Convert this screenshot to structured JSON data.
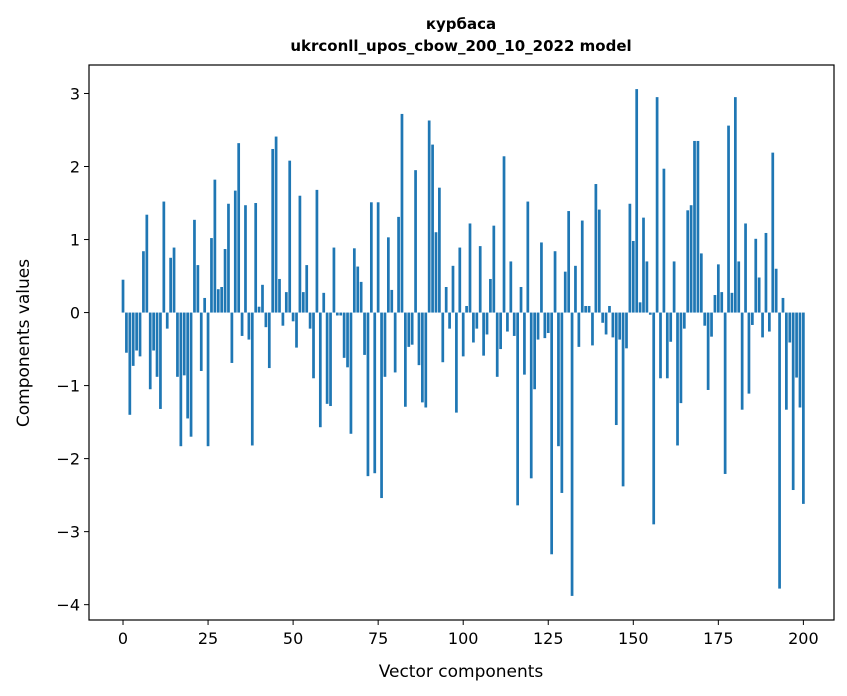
{
  "chart_data": {
    "type": "bar",
    "title_line1": "курбаса",
    "title_line2": "ukrconll_upos_cbow_200_10_2022 model",
    "xlabel": "Vector components",
    "ylabel": "Components values",
    "xlim": [
      -10,
      209
    ],
    "ylim": [
      -4.21,
      3.39
    ],
    "xticks": [
      0,
      25,
      50,
      75,
      100,
      125,
      150,
      175,
      200
    ],
    "yticks": [
      -4,
      -3,
      -2,
      -1,
      0,
      1,
      2,
      3
    ],
    "ytick_labels": [
      "−4",
      "−3",
      "−2",
      "−1",
      "0",
      "1",
      "2",
      "3"
    ],
    "bar_color": "#1f77b4",
    "values": [
      0.45,
      -0.55,
      -1.4,
      -0.73,
      -0.52,
      -0.6,
      0.84,
      1.34,
      -1.05,
      -0.52,
      -0.88,
      -1.32,
      1.52,
      -0.22,
      0.75,
      0.89,
      -0.88,
      -1.83,
      -0.86,
      -1.45,
      -1.7,
      1.27,
      0.65,
      -0.8,
      0.2,
      -1.83,
      1.02,
      1.82,
      0.32,
      0.35,
      0.87,
      1.49,
      -0.69,
      1.67,
      2.32,
      -0.32,
      1.47,
      -0.37,
      -1.82,
      1.5,
      0.08,
      0.38,
      -0.2,
      -0.76,
      2.24,
      2.41,
      0.46,
      -0.18,
      0.28,
      2.08,
      -0.12,
      -0.48,
      1.6,
      0.28,
      0.65,
      -0.22,
      -0.9,
      1.68,
      -1.57,
      0.27,
      -1.25,
      -1.28,
      0.89,
      -0.04,
      -0.04,
      -0.62,
      -0.75,
      -1.66,
      0.88,
      0.63,
      0.42,
      -0.58,
      -2.24,
      1.51,
      -2.2,
      1.51,
      -2.54,
      -0.88,
      1.03,
      0.31,
      -0.82,
      1.31,
      2.72,
      -1.29,
      -0.47,
      -0.44,
      1.95,
      -0.72,
      -1.23,
      -1.3,
      2.63,
      2.3,
      1.1,
      1.71,
      -0.68,
      0.35,
      -0.22,
      0.64,
      -1.37,
      0.89,
      -0.6,
      0.09,
      1.22,
      -0.41,
      -0.22,
      0.91,
      -0.59,
      -0.3,
      0.46,
      1.19,
      -0.88,
      -0.5,
      2.14,
      -0.26,
      0.7,
      -0.32,
      -2.64,
      0.35,
      -0.85,
      1.52,
      -2.27,
      -1.05,
      -0.37,
      0.96,
      -0.35,
      -0.28,
      -3.31,
      0.84,
      -1.83,
      -2.47,
      0.56,
      1.39,
      -3.88,
      0.64,
      -0.47,
      1.26,
      0.09,
      0.09,
      -0.45,
      1.76,
      1.41,
      -0.14,
      -0.3,
      0.09,
      -0.34,
      -1.54,
      -0.37,
      -2.38,
      -0.49,
      1.49,
      0.98,
      3.06,
      0.14,
      1.3,
      0.7,
      -0.03,
      -2.9,
      2.95,
      -0.9,
      1.97,
      -0.9,
      -0.4,
      0.7,
      -1.82,
      -1.24,
      -0.22,
      1.4,
      1.47,
      2.35,
      2.35,
      0.81,
      -0.18,
      -1.06,
      -0.33,
      0.24,
      0.66,
      0.28,
      -2.21,
      2.56,
      0.27,
      2.95,
      0.7,
      -1.33,
      1.22,
      -1.11,
      -0.17,
      1.01,
      0.48,
      -0.34,
      1.09,
      -0.26,
      2.19,
      0.6,
      -3.78,
      0.2,
      -1.33,
      -0.41,
      -2.43,
      -0.89,
      -1.3,
      -2.62
    ]
  }
}
